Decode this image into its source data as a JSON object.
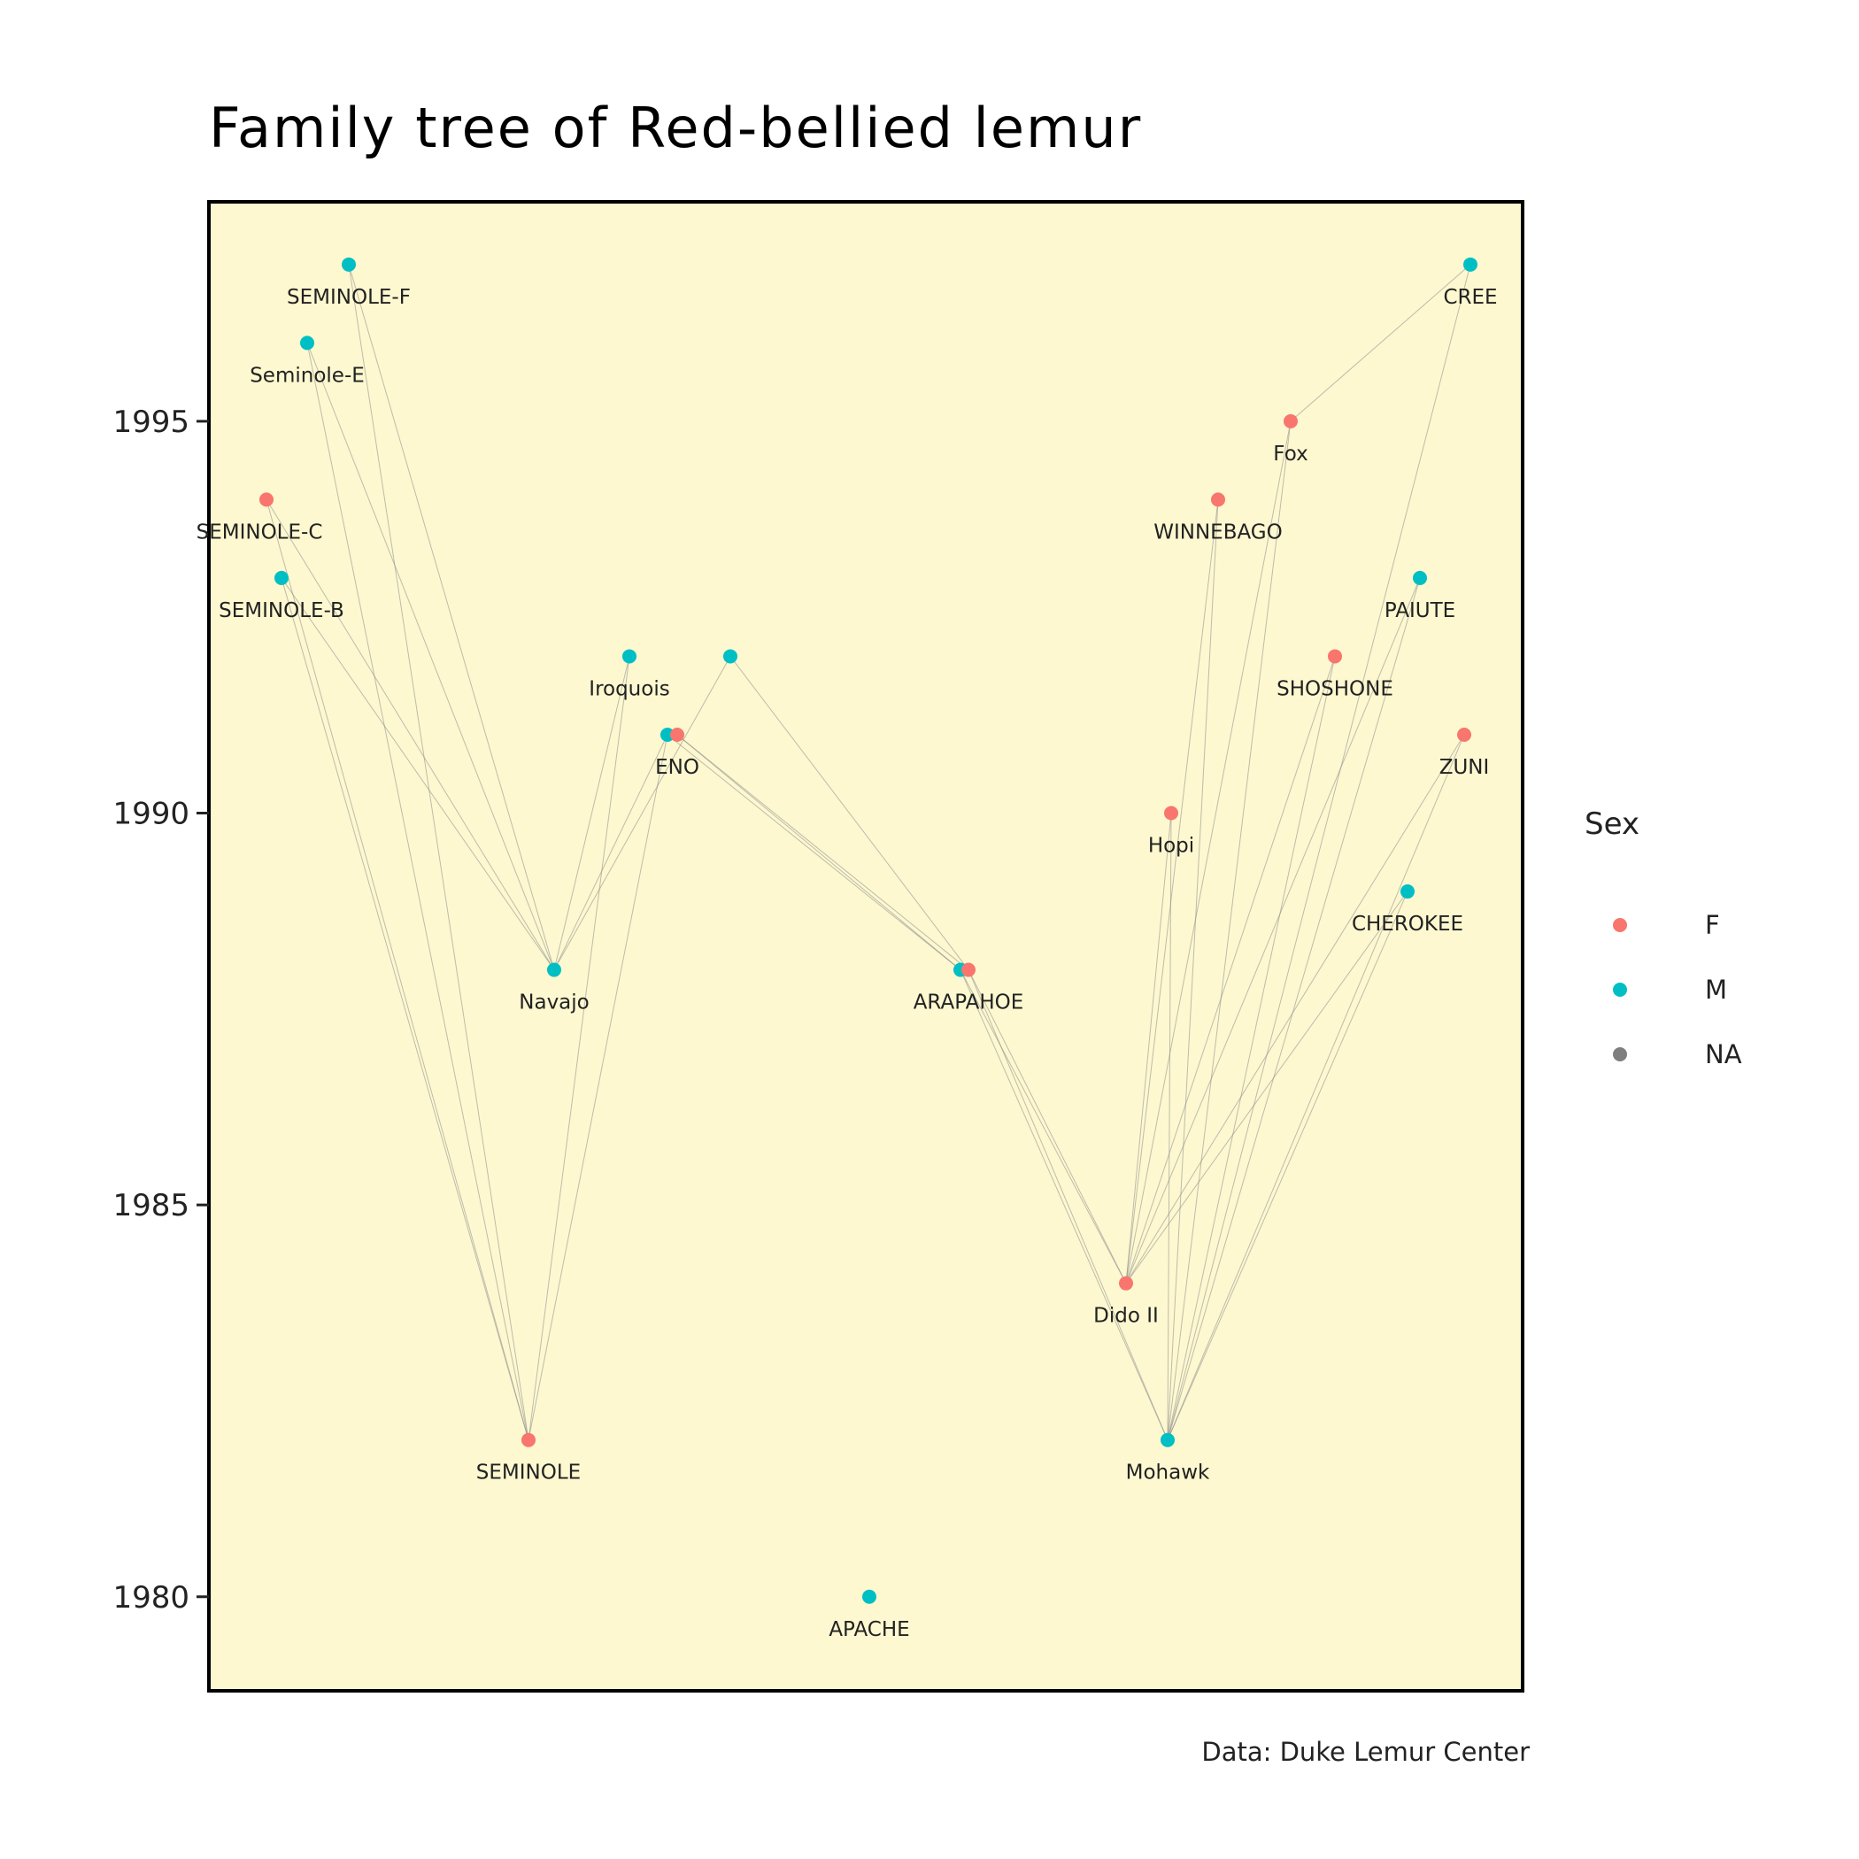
{
  "chart_data": {
    "type": "scatter",
    "title": "Family tree of Red-bellied lemur",
    "caption": "Data: Duke Lemur Center",
    "xlabel": "",
    "ylabel": "",
    "ylim": [
      1978.8,
      1997.8
    ],
    "y_ticks": [
      1980,
      1985,
      1990,
      1995
    ],
    "y_tick_labels": [
      "1980",
      "1985",
      "1990",
      "1995"
    ],
    "grid": false,
    "panel_background": "#fdf8d0",
    "legend": {
      "title": "Sex",
      "placement": "right",
      "entries": [
        {
          "label": "F",
          "color": "#f8766d"
        },
        {
          "label": "M",
          "color": "#00bfc4"
        },
        {
          "label": "NA",
          "color": "#7f7f7f"
        }
      ]
    },
    "nodes": [
      {
        "id": "seminole_f",
        "name": "SEMINOLE-F",
        "sex": "M",
        "birth_year": 1997
      },
      {
        "id": "seminole_e",
        "name": "Seminole-E",
        "sex": "M",
        "birth_year": 1996
      },
      {
        "id": "seminole_c",
        "name": "SEMINOLE-C",
        "sex": "F",
        "birth_year": 1994
      },
      {
        "id": "seminole_b",
        "name": "SEMINOLE-B",
        "sex": "M",
        "birth_year": 1993
      },
      {
        "id": "iroquois",
        "name": "Iroquois",
        "sex": "M",
        "birth_year": 1992
      },
      {
        "id": "unnamed_1992",
        "name": "",
        "sex": "M",
        "birth_year": 1992
      },
      {
        "id": "eno_m",
        "name": "",
        "sex": "M",
        "birth_year": 1991
      },
      {
        "id": "eno",
        "name": "ENO",
        "sex": "F",
        "birth_year": 1991
      },
      {
        "id": "navajo",
        "name": "Navajo",
        "sex": "M",
        "birth_year": 1988
      },
      {
        "id": "arapahoe_m",
        "name": "",
        "sex": "M",
        "birth_year": 1988
      },
      {
        "id": "arapahoe",
        "name": "ARAPAHOE",
        "sex": "F",
        "birth_year": 1988
      },
      {
        "id": "seminole",
        "name": "SEMINOLE",
        "sex": "F",
        "birth_year": 1982
      },
      {
        "id": "apache",
        "name": "APACHE",
        "sex": "M",
        "birth_year": 1980
      },
      {
        "id": "cree",
        "name": "CREE",
        "sex": "M",
        "birth_year": 1997
      },
      {
        "id": "fox",
        "name": "Fox",
        "sex": "F",
        "birth_year": 1995
      },
      {
        "id": "winnebago",
        "name": "WINNEBAGO",
        "sex": "F",
        "birth_year": 1994
      },
      {
        "id": "paiute",
        "name": "PAIUTE",
        "sex": "M",
        "birth_year": 1993
      },
      {
        "id": "shoshone",
        "name": "SHOSHONE",
        "sex": "F",
        "birth_year": 1992
      },
      {
        "id": "zuni",
        "name": "ZUNI",
        "sex": "F",
        "birth_year": 1991
      },
      {
        "id": "hopi",
        "name": "Hopi",
        "sex": "F",
        "birth_year": 1990
      },
      {
        "id": "cherokee",
        "name": "CHEROKEE",
        "sex": "M",
        "birth_year": 1989
      },
      {
        "id": "dido_ii",
        "name": "Dido II",
        "sex": "F",
        "birth_year": 1984
      },
      {
        "id": "mohawk",
        "name": "Mohawk",
        "sex": "M",
        "birth_year": 1982
      }
    ],
    "edges": [
      [
        "seminole_f",
        "navajo"
      ],
      [
        "seminole_f",
        "seminole"
      ],
      [
        "seminole_e",
        "navajo"
      ],
      [
        "seminole_e",
        "seminole"
      ],
      [
        "seminole_c",
        "navajo"
      ],
      [
        "seminole_c",
        "seminole"
      ],
      [
        "seminole_b",
        "navajo"
      ],
      [
        "seminole_b",
        "seminole"
      ],
      [
        "iroquois",
        "navajo"
      ],
      [
        "iroquois",
        "seminole"
      ],
      [
        "eno_m",
        "navajo"
      ],
      [
        "eno_m",
        "seminole"
      ],
      [
        "unnamed_1992",
        "arapahoe"
      ],
      [
        "unnamed_1992",
        "navajo"
      ],
      [
        "eno",
        "arapahoe"
      ],
      [
        "eno_m",
        "arapahoe_m"
      ],
      [
        "eno",
        "arapahoe_m"
      ],
      [
        "arapahoe_m",
        "dido_ii"
      ],
      [
        "arapahoe",
        "dido_ii"
      ],
      [
        "arapahoe_m",
        "mohawk"
      ],
      [
        "arapahoe",
        "mohawk"
      ],
      [
        "cree",
        "fox"
      ],
      [
        "cree",
        "mohawk"
      ],
      [
        "fox",
        "dido_ii"
      ],
      [
        "fox",
        "mohawk"
      ],
      [
        "winnebago",
        "dido_ii"
      ],
      [
        "winnebago",
        "mohawk"
      ],
      [
        "paiute",
        "dido_ii"
      ],
      [
        "paiute",
        "mohawk"
      ],
      [
        "shoshone",
        "dido_ii"
      ],
      [
        "shoshone",
        "mohawk"
      ],
      [
        "zuni",
        "dido_ii"
      ],
      [
        "zuni",
        "mohawk"
      ],
      [
        "hopi",
        "dido_ii"
      ],
      [
        "hopi",
        "mohawk"
      ],
      [
        "cherokee",
        "dido_ii"
      ],
      [
        "cherokee",
        "mohawk"
      ]
    ]
  }
}
